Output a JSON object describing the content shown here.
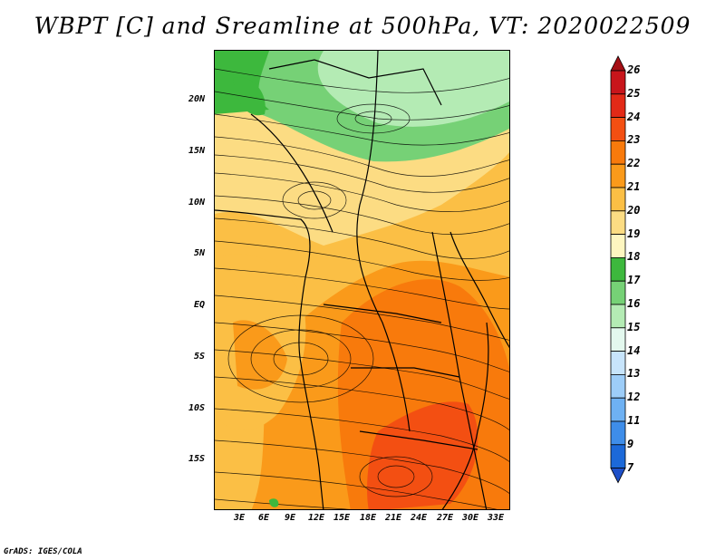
{
  "title": "WBPT [C] and Sreamline at 500hPa, VT: 2020022509",
  "credit": "GrADS: IGES/COLA",
  "lat_labels": [
    "20N",
    "15N",
    "10N",
    "5N",
    "EQ",
    "5S",
    "10S",
    "15S"
  ],
  "lon_labels": [
    "3E",
    "6E",
    "9E",
    "12E",
    "15E",
    "18E",
    "21E",
    "24E",
    "27E",
    "30E",
    "33E"
  ],
  "colorbar": {
    "levels": [
      "26",
      "25",
      "24",
      "23",
      "22",
      "21",
      "20",
      "19",
      "18",
      "17",
      "16",
      "15",
      "14",
      "13",
      "12",
      "11",
      "9",
      "7"
    ],
    "colors": [
      "#a50f15",
      "#c8151b",
      "#e22a17",
      "#f34f12",
      "#f87a0c",
      "#fa9a1a",
      "#fbbf45",
      "#fcdc83",
      "#fef6c0",
      "#3db83d",
      "#76d176",
      "#b4ebb4",
      "#e3f8ee",
      "#c7e4fb",
      "#9dcdf8",
      "#6eb1f3",
      "#3e8de9",
      "#1c69d9",
      "#1e50c8"
    ]
  },
  "field_colors": {
    "green_dark": "#3db83d",
    "green_mid": "#76d176",
    "green_light": "#b4ebb4",
    "yellow": "#fcdc83",
    "orange_light": "#fbbf45",
    "orange": "#fa9a1a",
    "orange_dark": "#f87a0c",
    "red_orange": "#f34f12"
  }
}
